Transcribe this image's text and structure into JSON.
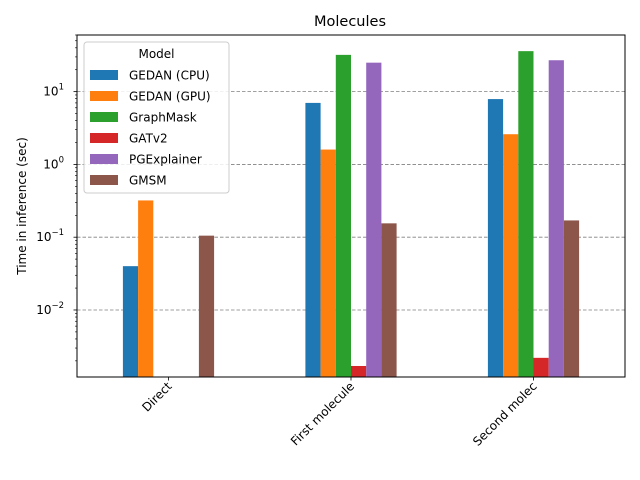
{
  "chart_data": {
    "type": "bar",
    "title": "Molecules",
    "xlabel": "",
    "ylabel": "Time in inference (sec)",
    "yscale": "log",
    "ylim": [
      0.0012,
      60
    ],
    "yticks": [
      {
        "value": 0.01,
        "base": "10",
        "exp": "−2"
      },
      {
        "value": 0.1,
        "base": "10",
        "exp": "−1"
      },
      {
        "value": 1,
        "base": "10",
        "exp": "0"
      },
      {
        "value": 10,
        "base": "10",
        "exp": "1"
      }
    ],
    "grid": "horizontal dashed",
    "categories": [
      "Direct",
      "First molecule",
      "Second molec"
    ],
    "legend": {
      "title": "Model",
      "placement": "upper-left"
    },
    "series": [
      {
        "name": "GEDAN (CPU)",
        "color": "#1f77b4",
        "values": [
          0.04,
          7.0,
          7.9
        ]
      },
      {
        "name": "GEDAN (GPU)",
        "color": "#ff7f0e",
        "values": [
          0.32,
          1.6,
          2.6
        ]
      },
      {
        "name": "GraphMask",
        "color": "#2ca02c",
        "values": [
          null,
          32,
          36
        ]
      },
      {
        "name": "GATv2",
        "color": "#d62728",
        "values": [
          null,
          0.0017,
          0.0022
        ]
      },
      {
        "name": "PGExplainer",
        "color": "#9467bd",
        "values": [
          null,
          25,
          27
        ]
      },
      {
        "name": "GMSM",
        "color": "#8c564b",
        "values": [
          0.105,
          0.155,
          0.17
        ]
      }
    ]
  }
}
